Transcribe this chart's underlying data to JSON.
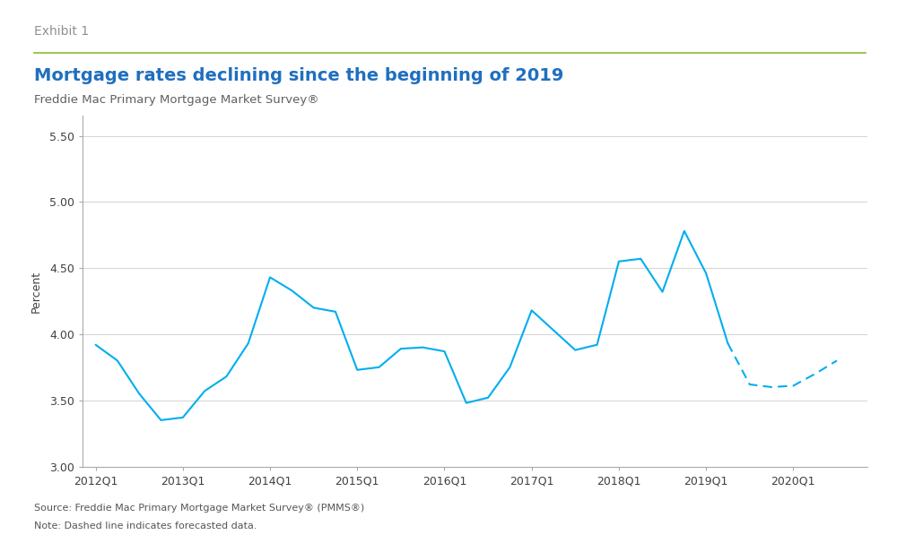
{
  "title": "Mortgage rates declining since the beginning of 2019",
  "subtitle": "Freddie Mac Primary Mortgage Market Survey®",
  "exhibit": "Exhibit 1",
  "ylabel": "Percent",
  "source": "Source: Freddie Mac Primary Mortgage Market Survey® (PMMS®)",
  "note": "Note: Dashed line indicates forecasted data.",
  "ylim": [
    3.0,
    5.65
  ],
  "yticks": [
    3.0,
    3.5,
    4.0,
    4.5,
    5.0,
    5.5
  ],
  "line_color": "#00AEEF",
  "background_color": "#ffffff",
  "title_color": "#1F6FBF",
  "exhibit_color": "#909090",
  "subtitle_color": "#606060",
  "axis_text_color": "#404040",
  "footer_color": "#555555",
  "green_line_color": "#8BBD2A",
  "grid_color": "#CCCCCC",
  "spine_color": "#AAAAAA",
  "solid_x": [
    2012.0,
    2012.25,
    2012.5,
    2012.75,
    2013.0,
    2013.25,
    2013.5,
    2013.75,
    2014.0,
    2014.25,
    2014.5,
    2014.75,
    2015.0,
    2015.25,
    2015.5,
    2015.75,
    2016.0,
    2016.25,
    2016.5,
    2016.75,
    2017.0,
    2017.25,
    2017.5,
    2017.75,
    2018.0,
    2018.25,
    2018.5,
    2018.75,
    2019.0,
    2019.25
  ],
  "solid_y": [
    3.92,
    3.8,
    3.55,
    3.35,
    3.37,
    3.57,
    3.68,
    3.93,
    4.43,
    4.33,
    4.2,
    4.17,
    3.73,
    3.75,
    3.89,
    3.9,
    3.87,
    3.48,
    3.52,
    3.75,
    4.18,
    4.03,
    3.88,
    3.92,
    4.55,
    4.57,
    4.32,
    4.78,
    4.46,
    3.93
  ],
  "dashed_x": [
    2019.25,
    2019.5,
    2019.75,
    2020.0,
    2020.25,
    2020.5
  ],
  "dashed_y": [
    3.93,
    3.62,
    3.6,
    3.61,
    3.7,
    3.8
  ],
  "xtick_positions": [
    2012.0,
    2013.0,
    2014.0,
    2015.0,
    2016.0,
    2017.0,
    2018.0,
    2019.0,
    2020.0
  ],
  "xtick_labels": [
    "2012Q1",
    "2013Q1",
    "2014Q1",
    "2015Q1",
    "2016Q1",
    "2017Q1",
    "2018Q1",
    "2019Q1",
    "2020Q1"
  ],
  "xlim_left": 2011.85,
  "xlim_right": 2020.85
}
